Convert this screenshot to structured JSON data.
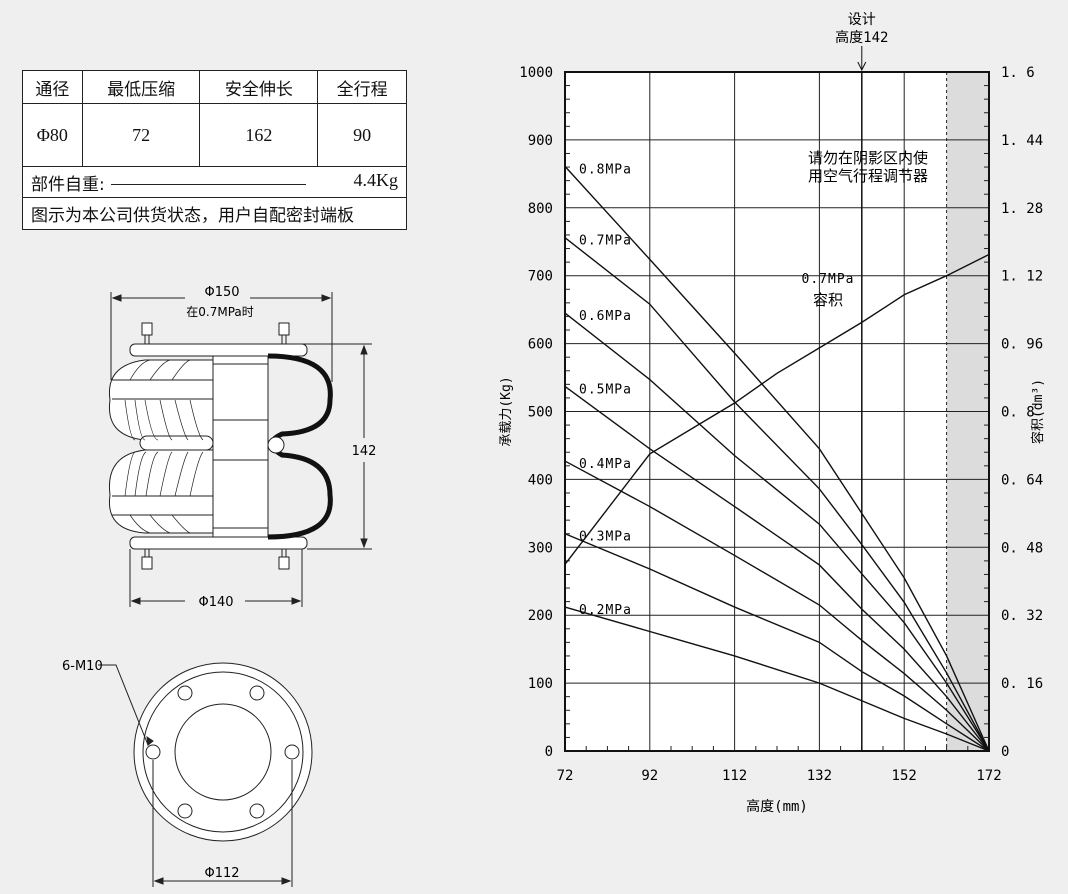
{
  "spec_table": {
    "headers": [
      "通径",
      "最低压缩",
      "安全伸长",
      "全行程"
    ],
    "values": [
      "Φ80",
      "72",
      "162",
      "90"
    ],
    "weight_label": "部件自重:",
    "weight_value": "4.4Kg",
    "note": "图示为本公司供货状态，用户自配密封端板"
  },
  "side_drawing": {
    "dim_top": "Φ150",
    "dim_top_note": "在0.7MPa时",
    "dim_height": "142",
    "dim_bottom": "Φ140"
  },
  "plan_drawing": {
    "bolt_label": "6-M10",
    "dim_bolt_circle": "Φ112"
  },
  "chart_data": {
    "type": "line",
    "xlabel": "高度(mm)",
    "ylabel": "承载力(Kg)",
    "y2label": "容积(dm³)",
    "xlim": [
      72,
      172
    ],
    "ylim": [
      0,
      1000
    ],
    "y2lim": [
      0,
      1.6
    ],
    "x_ticks": [
      "72",
      "92",
      "112",
      "132",
      "152",
      "172"
    ],
    "y_ticks": [
      "0",
      "100",
      "200",
      "300",
      "400",
      "500",
      "600",
      "700",
      "800",
      "900",
      "1000"
    ],
    "y2_ticks": [
      "0",
      "0.16",
      "0.32",
      "0.48",
      "0.64",
      "0.8",
      "0.96",
      "1.12",
      "1.28",
      "1.44",
      "1.6"
    ],
    "grid": true,
    "design_height": {
      "x": 142,
      "label_line1": "设计",
      "label_line2": "高度142"
    },
    "shaded_region": {
      "from": 162,
      "to": 172,
      "color": "#dcdcdc"
    },
    "shaded_note_line1": "请勿在阴影区内使",
    "shaded_note_line2": "用空气行程调节器",
    "x": [
      72,
      92,
      112,
      132,
      142,
      152,
      162,
      172
    ],
    "series": [
      {
        "name": "0.8MPa",
        "values": [
          861,
          724,
          586,
          445,
          350,
          255,
          140,
          0
        ]
      },
      {
        "name": "0.7MPa",
        "values": [
          756,
          658,
          514,
          386,
          304,
          219,
          115,
          0
        ]
      },
      {
        "name": "0.6MPa",
        "values": [
          645,
          547,
          435,
          334,
          261,
          189,
          100,
          0
        ]
      },
      {
        "name": "0.5MPa",
        "values": [
          537,
          445,
          360,
          274,
          209,
          150,
          80,
          0
        ]
      },
      {
        "name": "0.4MPa",
        "values": [
          427,
          360,
          288,
          215,
          163,
          114,
          60,
          0
        ]
      },
      {
        "name": "0.3MPa",
        "values": [
          320,
          268,
          212,
          160,
          117,
          81,
          40,
          0
        ]
      },
      {
        "name": "0.2MPa",
        "values": [
          212,
          176,
          140,
          100,
          74,
          48,
          25,
          0
        ]
      }
    ],
    "volume_series": {
      "label_line1": "0.7MPa",
      "label_line2": "容积",
      "axis": "right",
      "x": [
        72,
        92,
        112,
        122,
        132,
        142,
        152,
        162,
        172
      ],
      "values": [
        0.44,
        0.7,
        0.82,
        0.89,
        0.95,
        1.01,
        1.075,
        1.12,
        1.17
      ]
    }
  }
}
